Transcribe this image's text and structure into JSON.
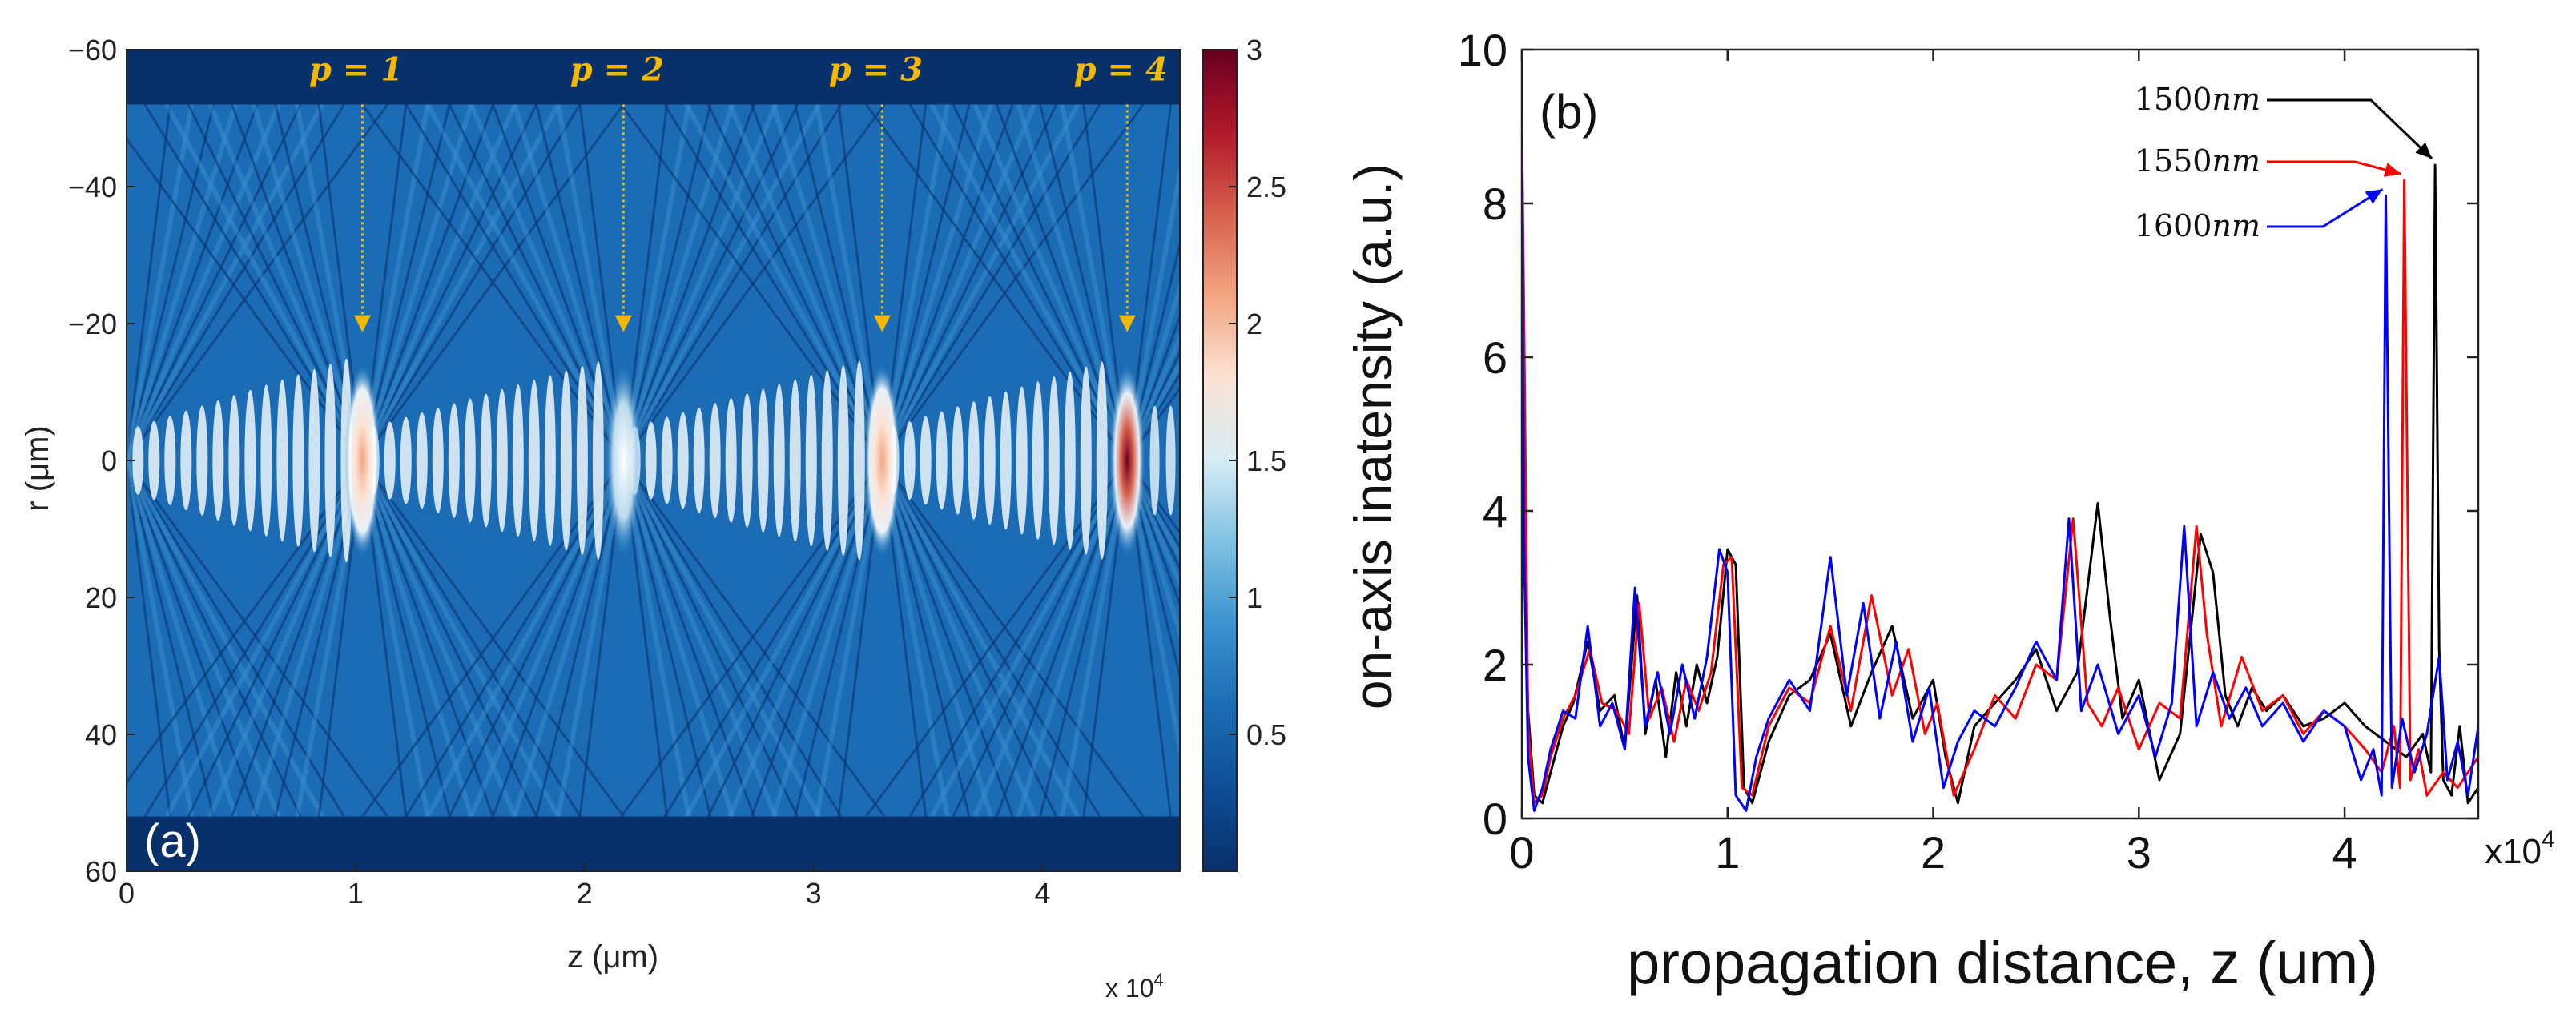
{
  "chart_data": [
    {
      "type": "heatmap",
      "panel_label": "(a)",
      "xlabel": "z (μm)",
      "ylabel": "r (μm)",
      "x_multiplier_label": "x 10",
      "x_multiplier_exp": "4",
      "xlim": [
        0,
        4.6
      ],
      "ylim": [
        -60,
        60
      ],
      "xticks": [
        0,
        1,
        2,
        3,
        4
      ],
      "xtick_labels": [
        "0",
        "1",
        "2",
        "3",
        "4"
      ],
      "yticks": [
        -60,
        -40,
        -20,
        0,
        20,
        40,
        60
      ],
      "ytick_labels": [
        "−60",
        "−40",
        "−20",
        "0",
        "20",
        "40",
        "60"
      ],
      "colorbar": {
        "range": [
          0,
          3
        ],
        "ticks": [
          0.5,
          1,
          1.5,
          2,
          2.5,
          3
        ],
        "tick_labels": [
          "0.5",
          "1",
          "1.5",
          "2",
          "2.5",
          "3"
        ],
        "colors": [
          "#08306b",
          "#0d4d96",
          "#1b6cb5",
          "#3a92cf",
          "#7fc1e2",
          "#d7ecf6",
          "#fbe3d5",
          "#f4a582",
          "#d6604d",
          "#b2182b",
          "#67001f"
        ]
      },
      "focal_points": [
        {
          "label": "p = 1",
          "z": 1.03,
          "peak": 1.9
        },
        {
          "label": "p = 2",
          "z": 2.17,
          "peak": 1.2
        },
        {
          "label": "p = 3",
          "z": 3.3,
          "peak": 1.75
        },
        {
          "label": "p = 4",
          "z": 4.37,
          "peak": 3.0
        }
      ],
      "beam_edge_r": 52,
      "annotation_color": "#f5b800"
    },
    {
      "type": "line",
      "panel_label": "(b)",
      "xlabel": "propagation distance, z (um)",
      "ylabel": "on-axis inatensity (a.u.)",
      "x_multiplier_label": "x10",
      "x_multiplier_exp": "4",
      "xlim": [
        0,
        4.65
      ],
      "ylim": [
        0,
        10
      ],
      "xticks": [
        0,
        1,
        2,
        3,
        4
      ],
      "xtick_labels": [
        "0",
        "1",
        "2",
        "3",
        "4"
      ],
      "yticks": [
        0,
        2,
        4,
        6,
        8,
        10
      ],
      "ytick_labels": [
        "0",
        "2",
        "4",
        "6",
        "8",
        "10"
      ],
      "series": [
        {
          "name": "1500nm",
          "label_text": "1500",
          "label_unit": "nm",
          "color": "#000000",
          "x": [
            0,
            0.01,
            0.03,
            0.06,
            0.1,
            0.14,
            0.2,
            0.25,
            0.32,
            0.38,
            0.45,
            0.5,
            0.56,
            0.6,
            0.65,
            0.7,
            0.75,
            0.8,
            0.85,
            0.9,
            0.95,
            1.0,
            1.04,
            1.08,
            1.12,
            1.2,
            1.3,
            1.4,
            1.5,
            1.6,
            1.7,
            1.8,
            1.9,
            2.0,
            2.06,
            2.12,
            2.2,
            2.3,
            2.4,
            2.5,
            2.6,
            2.7,
            2.8,
            2.86,
            2.92,
            3.0,
            3.1,
            3.2,
            3.3,
            3.36,
            3.42,
            3.48,
            3.55,
            3.62,
            3.7,
            3.8,
            3.9,
            4.0,
            4.1,
            4.2,
            4.3,
            4.38,
            4.42,
            4.44,
            4.46,
            4.48,
            4.52,
            4.56,
            4.6,
            4.65
          ],
          "y": [
            8.9,
            3.5,
            1.4,
            0.3,
            0.2,
            0.6,
            1.2,
            1.5,
            2.3,
            1.4,
            1.6,
            0.9,
            2.9,
            1.1,
            1.8,
            0.8,
            1.9,
            1.2,
            2.0,
            1.5,
            2.1,
            3.5,
            3.3,
            0.4,
            0.2,
            1.0,
            1.6,
            1.8,
            2.4,
            1.2,
            1.9,
            2.5,
            1.3,
            1.8,
            0.8,
            0.2,
            1.2,
            1.5,
            1.8,
            2.2,
            1.4,
            1.9,
            4.1,
            2.6,
            1.3,
            1.8,
            0.5,
            1.1,
            3.7,
            3.2,
            1.6,
            1.2,
            1.7,
            1.4,
            1.6,
            1.2,
            1.3,
            1.5,
            1.2,
            1.0,
            0.8,
            1.1,
            0.6,
            8.5,
            2.2,
            0.5,
            0.3,
            1.2,
            0.2,
            0.4
          ]
        },
        {
          "name": "1550nm",
          "label_text": "1550",
          "label_unit": "nm",
          "color": "#ff0000",
          "x": [
            0,
            0.01,
            0.03,
            0.06,
            0.1,
            0.14,
            0.2,
            0.26,
            0.33,
            0.39,
            0.46,
            0.52,
            0.57,
            0.62,
            0.68,
            0.74,
            0.8,
            0.86,
            0.92,
            0.98,
            1.02,
            1.07,
            1.12,
            1.2,
            1.3,
            1.4,
            1.5,
            1.6,
            1.7,
            1.8,
            1.88,
            1.96,
            2.02,
            2.1,
            2.2,
            2.3,
            2.4,
            2.5,
            2.6,
            2.68,
            2.75,
            2.82,
            2.9,
            3.0,
            3.1,
            3.2,
            3.28,
            3.33,
            3.4,
            3.5,
            3.6,
            3.7,
            3.8,
            3.9,
            4.0,
            4.1,
            4.18,
            4.24,
            4.27,
            4.29,
            4.32,
            4.36,
            4.4,
            4.48,
            4.55,
            4.65
          ],
          "y": [
            9.0,
            6.6,
            1.2,
            0.2,
            0.3,
            0.8,
            1.3,
            1.6,
            2.2,
            1.5,
            1.4,
            1.1,
            2.8,
            1.3,
            1.7,
            1.0,
            1.8,
            1.4,
            1.9,
            3.3,
            3.4,
            0.4,
            0.3,
            1.2,
            1.7,
            1.5,
            2.5,
            1.4,
            2.9,
            1.6,
            2.2,
            1.1,
            1.5,
            0.3,
            0.9,
            1.6,
            1.3,
            2.0,
            1.8,
            3.9,
            1.5,
            1.2,
            1.7,
            0.9,
            1.5,
            1.3,
            3.8,
            2.4,
            1.2,
            2.1,
            1.4,
            1.6,
            1.1,
            1.4,
            1.2,
            0.9,
            0.6,
            1.2,
            0.4,
            8.3,
            0.5,
            0.9,
            0.3,
            0.6,
            0.4,
            0.8
          ]
        },
        {
          "name": "1600nm",
          "label_text": "1600",
          "label_unit": "nm",
          "color": "#0000ff",
          "x": [
            0,
            0.01,
            0.03,
            0.06,
            0.1,
            0.14,
            0.2,
            0.26,
            0.32,
            0.38,
            0.44,
            0.5,
            0.55,
            0.6,
            0.66,
            0.72,
            0.78,
            0.84,
            0.9,
            0.96,
            1.0,
            1.04,
            1.09,
            1.14,
            1.2,
            1.3,
            1.4,
            1.5,
            1.58,
            1.66,
            1.74,
            1.82,
            1.9,
            1.98,
            2.05,
            2.12,
            2.2,
            2.3,
            2.4,
            2.5,
            2.6,
            2.66,
            2.72,
            2.8,
            2.9,
            3.0,
            3.08,
            3.16,
            3.22,
            3.28,
            3.36,
            3.44,
            3.52,
            3.6,
            3.7,
            3.8,
            3.9,
            4.0,
            4.08,
            4.14,
            4.18,
            4.2,
            4.23,
            4.28,
            4.34,
            4.4,
            4.46,
            4.5,
            4.55,
            4.6,
            4.65
          ],
          "y": [
            9.1,
            3.6,
            0.8,
            0.1,
            0.4,
            0.9,
            1.4,
            1.3,
            2.5,
            1.2,
            1.5,
            0.9,
            3.0,
            1.2,
            1.9,
            1.1,
            2.0,
            1.3,
            2.1,
            3.5,
            3.2,
            0.3,
            0.1,
            0.8,
            1.3,
            1.8,
            1.4,
            3.4,
            1.6,
            2.8,
            1.3,
            2.3,
            1.0,
            1.7,
            0.4,
            1.0,
            1.4,
            1.2,
            1.7,
            2.3,
            1.8,
            3.9,
            1.4,
            2.0,
            1.1,
            1.6,
            0.8,
            1.5,
            3.8,
            1.2,
            1.9,
            1.3,
            1.7,
            1.2,
            1.5,
            1.0,
            1.4,
            1.2,
            0.5,
            0.9,
            0.3,
            8.1,
            0.4,
            1.3,
            0.6,
            1.1,
            2.1,
            0.5,
            1.0,
            0.3,
            1.2
          ]
        }
      ]
    }
  ]
}
